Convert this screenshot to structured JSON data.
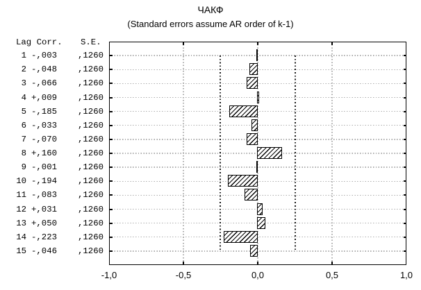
{
  "title": "ЧАКФ",
  "subtitle": "(Standard errors assume AR order of k-1)",
  "table": {
    "headers": {
      "lag": "Lag",
      "corr": "Corr.",
      "se": "S.E."
    },
    "rows": [
      {
        "lag": "1",
        "corr": "-,003",
        "se": ",1260"
      },
      {
        "lag": "2",
        "corr": "-,048",
        "se": ",1260"
      },
      {
        "lag": "3",
        "corr": "-,066",
        "se": ",1260"
      },
      {
        "lag": "4",
        "corr": "+,009",
        "se": ",1260"
      },
      {
        "lag": "5",
        "corr": "-,185",
        "se": ",1260"
      },
      {
        "lag": "6",
        "corr": "-,033",
        "se": ",1260"
      },
      {
        "lag": "7",
        "corr": "-,070",
        "se": ",1260"
      },
      {
        "lag": "8",
        "corr": "+,160",
        "se": ",1260"
      },
      {
        "lag": "9",
        "corr": "-,001",
        "se": ",1260"
      },
      {
        "lag": "10",
        "corr": "-,194",
        "se": ",1260"
      },
      {
        "lag": "11",
        "corr": "-,083",
        "se": ",1260"
      },
      {
        "lag": "12",
        "corr": "+,031",
        "se": ",1260"
      },
      {
        "lag": "13",
        "corr": "+,050",
        "se": ",1260"
      },
      {
        "lag": "14",
        "corr": "-,223",
        "se": ",1260"
      },
      {
        "lag": "15",
        "corr": "-,046",
        "se": ",1260"
      }
    ]
  },
  "x_axis": {
    "tick_labels": [
      "-1,0",
      "-0,5",
      "0,0",
      "0,5",
      "1,0"
    ]
  },
  "chart_data": {
    "type": "bar",
    "orientation": "horizontal",
    "title": "ЧАКФ",
    "subtitle": "(Standard errors assume AR order of k-1)",
    "ylabel": "Lag",
    "lags": [
      1,
      2,
      3,
      4,
      5,
      6,
      7,
      8,
      9,
      10,
      11,
      12,
      13,
      14,
      15
    ],
    "values": [
      -0.003,
      -0.048,
      -0.066,
      0.009,
      -0.185,
      -0.033,
      -0.07,
      0.16,
      -0.001,
      -0.194,
      -0.083,
      0.031,
      0.05,
      -0.223,
      -0.046
    ],
    "standard_error": 0.126,
    "confidence_limits": [
      -0.252,
      0.252
    ],
    "xlim": [
      -1.0,
      1.0
    ],
    "x_ticks": [
      -1,
      -0.5,
      0,
      0.5,
      1
    ],
    "grid": "dotted",
    "legend": "none",
    "bar_style": "hatched-diagonal"
  },
  "colors": {
    "background": "#ffffff",
    "foreground": "#000000",
    "gridline": "#ababab"
  }
}
